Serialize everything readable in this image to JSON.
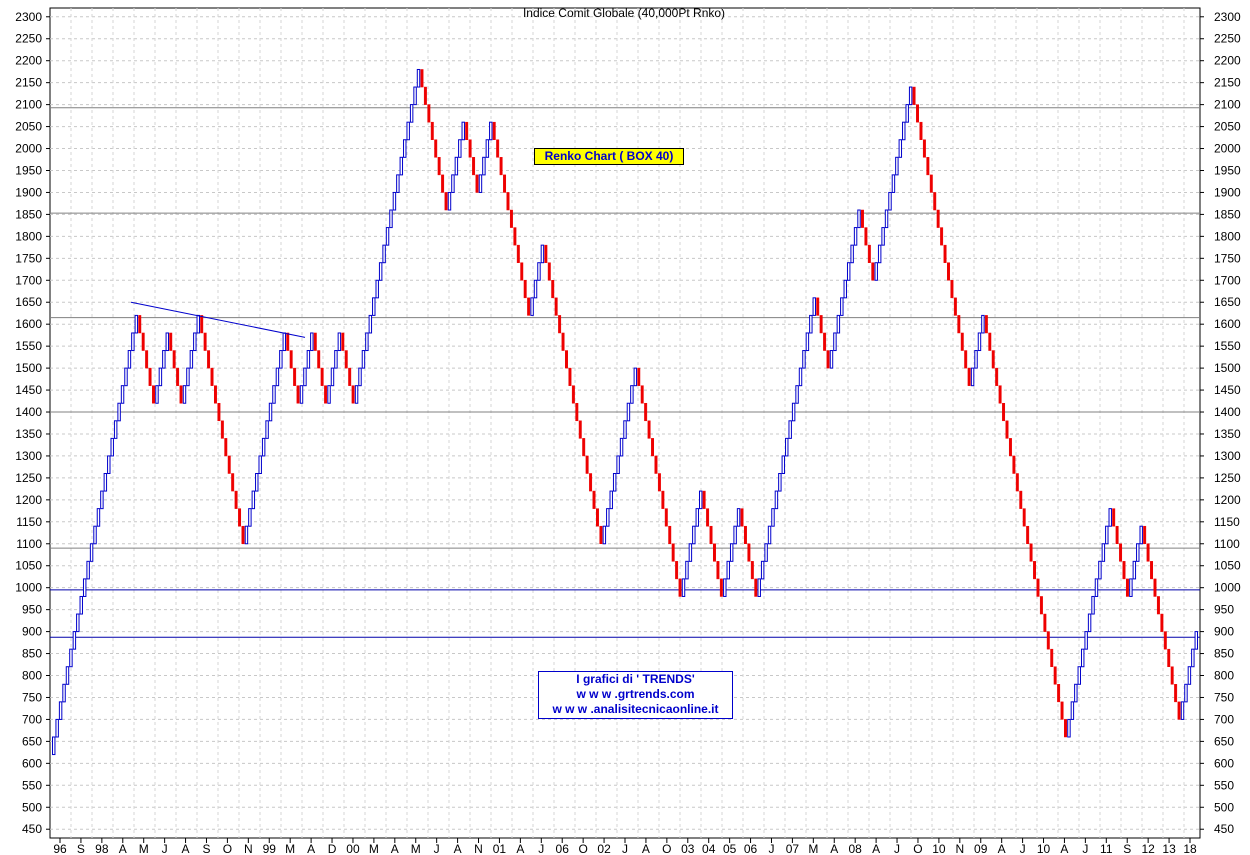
{
  "chart_data": {
    "type": "renko",
    "title": "Indice Comit Globale (40,000Pt Rnko)",
    "box_size": 40,
    "ylim": [
      430,
      2320
    ],
    "y_ticks": [
      450,
      500,
      550,
      600,
      650,
      700,
      750,
      800,
      850,
      900,
      950,
      1000,
      1050,
      1100,
      1150,
      1200,
      1250,
      1300,
      1350,
      1400,
      1450,
      1500,
      1550,
      1600,
      1650,
      1700,
      1750,
      1800,
      1850,
      1900,
      1950,
      2000,
      2050,
      2100,
      2150,
      2200,
      2250,
      2300
    ],
    "x_ticks": [
      "96",
      "S",
      "98",
      "A",
      "M",
      "J",
      "A",
      "S",
      "O",
      "N",
      "99",
      "M",
      "A",
      "D",
      "00",
      "M",
      "A",
      "M",
      "J",
      "A",
      "N",
      "01",
      "A",
      "J",
      "06",
      "O",
      "02",
      "J",
      "A",
      "O",
      "03",
      "04",
      "05",
      "06",
      "J",
      "07",
      "M",
      "A",
      "08",
      "A",
      "J",
      "O",
      "10",
      "N",
      "09",
      "A",
      "J",
      "10",
      "A",
      "J",
      "11",
      "S",
      "12",
      "13",
      "18"
    ],
    "horizontal_lines": [
      {
        "value": 2093,
        "color": "#808080"
      },
      {
        "value": 1853,
        "color": "#808080"
      },
      {
        "value": 1615,
        "color": "#808080"
      },
      {
        "value": 1400,
        "color": "#808080"
      },
      {
        "value": 1090,
        "color": "#808080"
      },
      {
        "value": 995,
        "color": "#0000aa"
      },
      {
        "value": 887,
        "color": "#0000aa"
      }
    ],
    "trendline": {
      "from": [
        131,
        1650
      ],
      "to": [
        305,
        1570
      ],
      "color": "#0000cc"
    },
    "up_color": "#0000cc",
    "down_color": "#ee0000",
    "path_points": [
      620,
      1620,
      1420,
      1580,
      1420,
      1620,
      1100,
      1580,
      1420,
      1580,
      1420,
      1580,
      1420,
      1580,
      2180,
      1860,
      2060,
      1900,
      2060,
      1860,
      1620,
      1780,
      1100,
      1500,
      980,
      1220,
      980,
      1180,
      980,
      1660,
      1500,
      1860,
      1700,
      2140,
      1460,
      1620,
      660,
      1180,
      980,
      1140,
      700,
      900
    ]
  },
  "annotations": {
    "box_label": "Renko Chart ( BOX 40)",
    "trends_line1": "I grafici di ' TRENDS'",
    "trends_line2": "w w w .grtrends.com",
    "trends_line3": "w w w .analisitecnicaonline.it"
  }
}
